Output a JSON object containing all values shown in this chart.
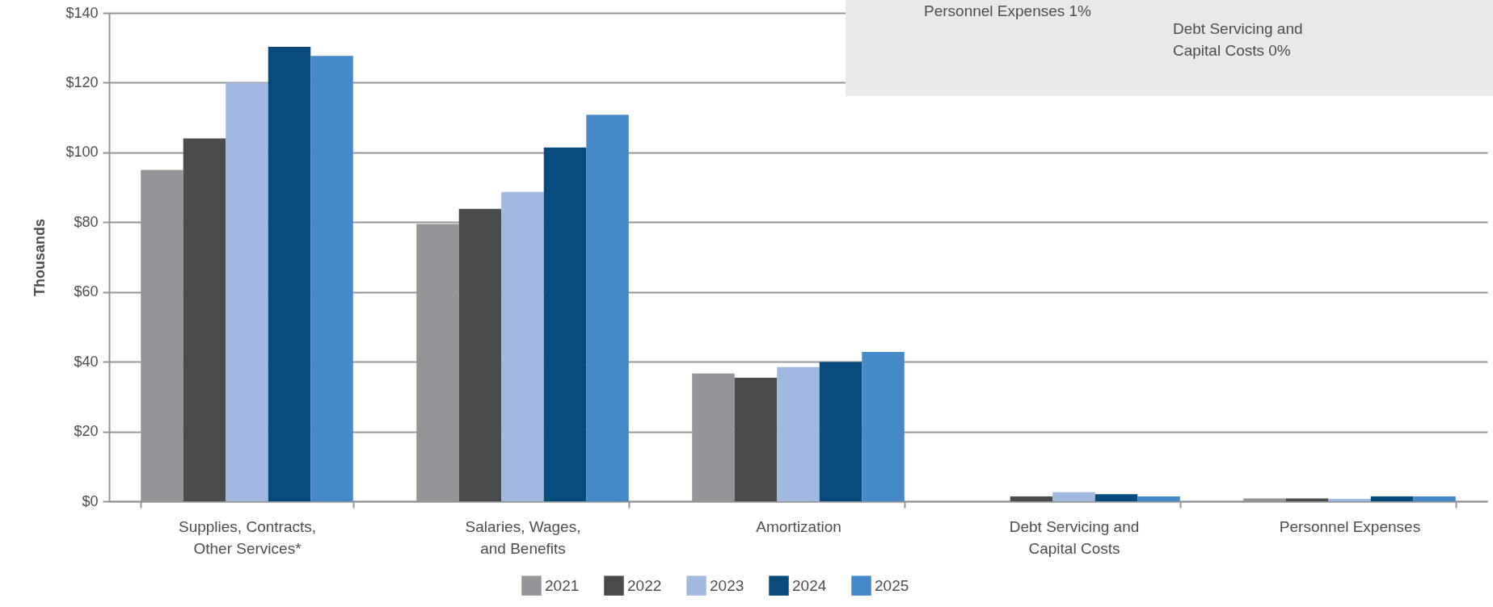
{
  "chart_data": {
    "type": "bar",
    "ylabel": "Thousands",
    "categories": [
      "Supplies, Contracts,\nOther Services*",
      "Salaries, Wages,\nand Benefits",
      "Amortization",
      "Debt Servicing and\nCapital Costs",
      "Personnel Expenses"
    ],
    "series": [
      {
        "name": "2021",
        "color": "#939598",
        "values": [
          95,
          79.5,
          36.6,
          null,
          0.8
        ]
      },
      {
        "name": "2022",
        "color": "#4a4b4d",
        "values": [
          104,
          83.8,
          35.4,
          1.4,
          0.8
        ]
      },
      {
        "name": "2023",
        "color": "#9fb9e0",
        "values": [
          120,
          88.7,
          38.5,
          2.6,
          0.7
        ]
      },
      {
        "name": "2024",
        "color": "#074a7c",
        "values": [
          130.3,
          101.4,
          39.9,
          2.0,
          1.4
        ]
      },
      {
        "name": "2025",
        "color": "#4589c9",
        "values": [
          127.7,
          110.8,
          42.8,
          1.4,
          1.4
        ]
      }
    ],
    "ylim": [
      0,
      140
    ],
    "yticks": [
      {
        "value": 0,
        "label": "$0"
      },
      {
        "value": 20,
        "label": "$20"
      },
      {
        "value": 40,
        "label": "$40"
      },
      {
        "value": 60,
        "label": "$60"
      },
      {
        "value": 80,
        "label": "$80"
      },
      {
        "value": 100,
        "label": "$100"
      },
      {
        "value": 120,
        "label": "$120"
      },
      {
        "value": 140,
        "label": "$140"
      }
    ],
    "grid": "y",
    "legend": "bottom",
    "annotations": [
      "Personnel Expenses 1%",
      "Debt Servicing and\nCapital Costs 0%"
    ]
  }
}
